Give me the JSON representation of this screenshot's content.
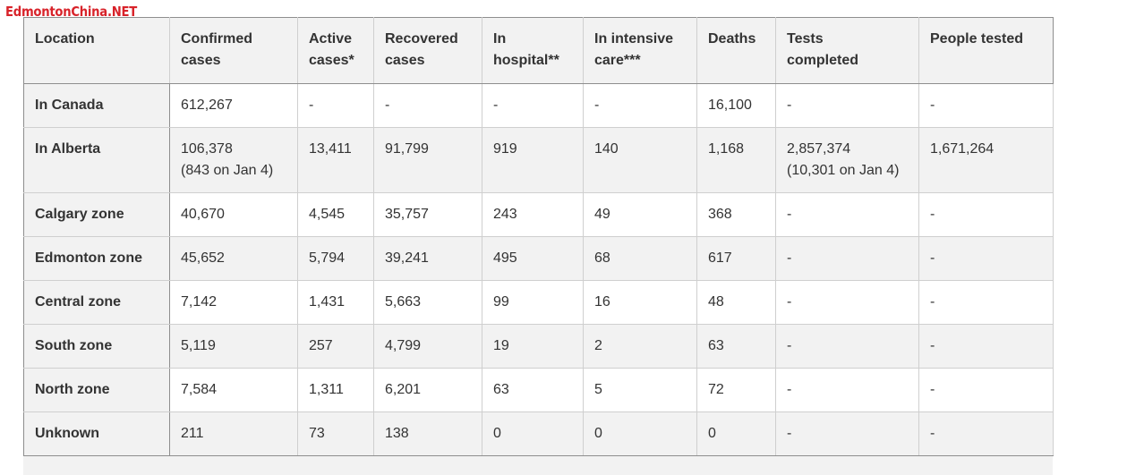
{
  "watermark": "EdmontonChina.NET",
  "table": {
    "headers": [
      [
        "Location"
      ],
      [
        "Confirmed",
        "cases"
      ],
      [
        "Active",
        "cases*"
      ],
      [
        "Recovered",
        "cases"
      ],
      [
        "In",
        "hospital**"
      ],
      [
        "In intensive",
        "care***"
      ],
      [
        "Deaths"
      ],
      [
        "Tests",
        "completed"
      ],
      [
        "People tested"
      ]
    ],
    "rows": [
      {
        "location": "In Canada",
        "cells": [
          [
            "612,267"
          ],
          [
            "-"
          ],
          [
            "-"
          ],
          [
            "-"
          ],
          [
            "-"
          ],
          [
            "16,100"
          ],
          [
            "-"
          ],
          [
            "-"
          ]
        ]
      },
      {
        "location": "In Alberta",
        "cells": [
          [
            "106,378",
            "(843 on Jan 4)"
          ],
          [
            "13,411"
          ],
          [
            "91,799"
          ],
          [
            "919"
          ],
          [
            "140"
          ],
          [
            "1,168"
          ],
          [
            "2,857,374",
            "(10,301 on Jan 4)"
          ],
          [
            "1,671,264"
          ]
        ]
      },
      {
        "location": "Calgary zone",
        "cells": [
          [
            "40,670"
          ],
          [
            "4,545"
          ],
          [
            "35,757"
          ],
          [
            "243"
          ],
          [
            "49"
          ],
          [
            "368"
          ],
          [
            "-"
          ],
          [
            "-"
          ]
        ]
      },
      {
        "location": "Edmonton zone",
        "cells": [
          [
            "45,652"
          ],
          [
            "5,794"
          ],
          [
            "39,241"
          ],
          [
            "495"
          ],
          [
            "68"
          ],
          [
            "617"
          ],
          [
            "-"
          ],
          [
            "-"
          ]
        ]
      },
      {
        "location": "Central zone",
        "cells": [
          [
            "7,142"
          ],
          [
            "1,431"
          ],
          [
            "5,663"
          ],
          [
            "99"
          ],
          [
            "16"
          ],
          [
            "48"
          ],
          [
            "-"
          ],
          [
            "-"
          ]
        ]
      },
      {
        "location": "South zone",
        "cells": [
          [
            "5,119"
          ],
          [
            "257"
          ],
          [
            "4,799"
          ],
          [
            "19"
          ],
          [
            "2"
          ],
          [
            "63"
          ],
          [
            "-"
          ],
          [
            "-"
          ]
        ]
      },
      {
        "location": "North zone",
        "cells": [
          [
            "7,584"
          ],
          [
            "1,311"
          ],
          [
            "6,201"
          ],
          [
            "63"
          ],
          [
            "5"
          ],
          [
            "72"
          ],
          [
            "-"
          ],
          [
            "-"
          ]
        ]
      },
      {
        "location": "Unknown",
        "cells": [
          [
            "211"
          ],
          [
            "73"
          ],
          [
            "138"
          ],
          [
            "0"
          ],
          [
            "0"
          ],
          [
            "0"
          ],
          [
            "-"
          ],
          [
            "-"
          ]
        ]
      }
    ]
  }
}
